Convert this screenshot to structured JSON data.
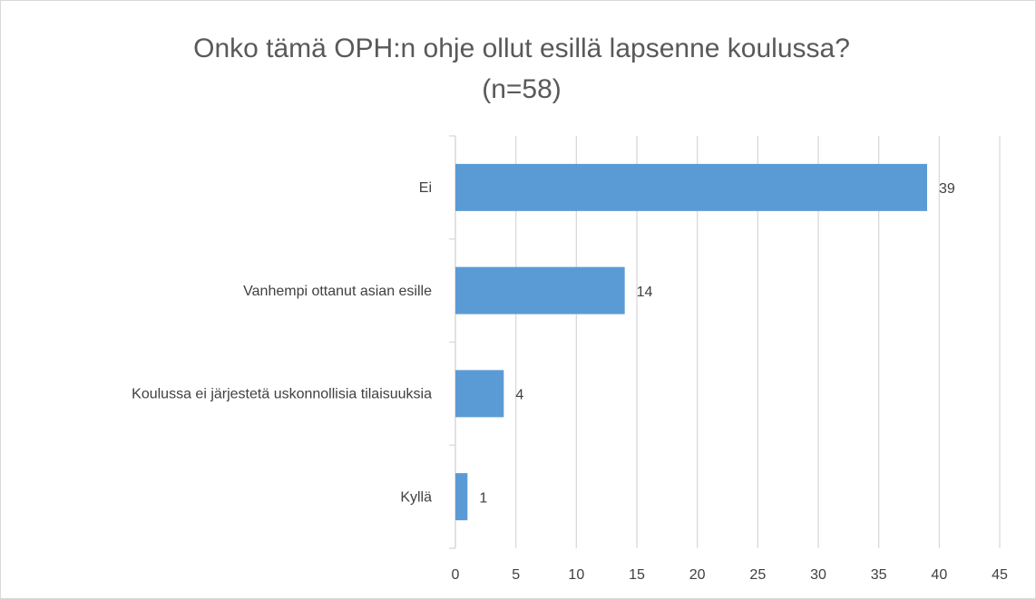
{
  "chart_data": {
    "type": "bar",
    "orientation": "horizontal",
    "title": [
      "Onko tämä OPH:n ohje ollut esillä lapsenne koulussa?",
      "(n=58)"
    ],
    "categories": [
      "Ei",
      "Vanhempi ottanut asian esille",
      "Koulussa ei järjestetä uskonnollisia tilaisuuksia",
      "Kyllä"
    ],
    "values": [
      39,
      14,
      4,
      1
    ],
    "color": "#5b9bd5",
    "xlim": [
      0,
      45
    ],
    "xticks": [
      0,
      5,
      10,
      15,
      20,
      25,
      30,
      35,
      40,
      45
    ],
    "grid": true
  }
}
